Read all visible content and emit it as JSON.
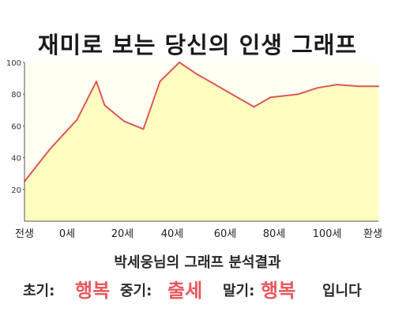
{
  "title": "재미로 보는 당신의 인생 그래프",
  "summary": "박세웅님의 그래프 분석결과",
  "results": {
    "early_label": "초기:",
    "early_value": "행복",
    "middle_label": "중기:",
    "middle_value": "출세",
    "late_label": "말기:",
    "late_value": "행복",
    "ending": "입니다"
  },
  "colors": {
    "fill": "#fffdbf",
    "line": "#d9585a",
    "plot_bg": "#fffff2",
    "accent": "#e8585d"
  },
  "chart_data": {
    "type": "area",
    "title": "재미로 보는 당신의 인생 그래프",
    "categories": [
      "전생",
      "0세",
      "20세",
      "40세",
      "60세",
      "80세",
      "100세",
      "환생"
    ],
    "x": [
      -9,
      0,
      10,
      17,
      20,
      27,
      34,
      40,
      47,
      53,
      60,
      67,
      74,
      80,
      90,
      97,
      104,
      112,
      119
    ],
    "values": [
      25,
      45,
      64,
      88,
      73,
      63,
      58,
      88,
      100,
      93,
      86,
      79,
      72,
      78,
      80,
      84,
      86,
      85,
      85
    ],
    "y_ticks": [
      20,
      40,
      60,
      80,
      100
    ],
    "ylim": [
      0,
      100
    ],
    "xlim": [
      -9,
      119
    ],
    "grid": false,
    "legend": "none"
  }
}
